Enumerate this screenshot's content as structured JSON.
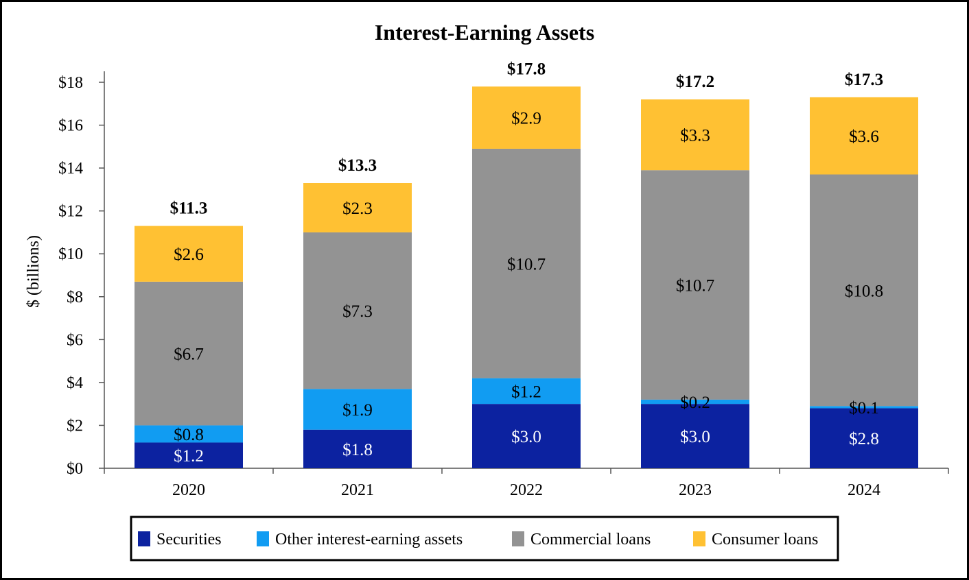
{
  "chart_data": {
    "type": "bar",
    "stacked": true,
    "title": "Interest-Earning Assets",
    "ylabel": "$ (billions)",
    "xlabel": "",
    "ylim": [
      0,
      18
    ],
    "y_ticks": [
      0,
      2,
      4,
      6,
      8,
      10,
      12,
      14,
      16,
      18
    ],
    "y_tick_labels": [
      "$0",
      "$2",
      "$4",
      "$6",
      "$8",
      "$10",
      "$12",
      "$14",
      "$16",
      "$18"
    ],
    "categories": [
      "2020",
      "2021",
      "2022",
      "2023",
      "2024"
    ],
    "series": [
      {
        "name": "Securities",
        "color": "#0c22a0",
        "label_color": "#ffffff",
        "values": [
          1.2,
          1.8,
          3.0,
          3.0,
          2.8
        ],
        "labels": [
          "$1.2",
          "$1.8",
          "$3.0",
          "$3.0",
          "$2.8"
        ]
      },
      {
        "name": "Other interest-earning assets",
        "color": "#119cf2",
        "label_color": "#000000",
        "values": [
          0.8,
          1.9,
          1.2,
          0.2,
          0.1
        ],
        "labels": [
          "$0.8",
          "$1.9",
          "$1.2",
          "$0.2",
          "$0.1"
        ]
      },
      {
        "name": "Commercial loans",
        "color": "#939393",
        "label_color": "#000000",
        "values": [
          6.7,
          7.3,
          10.7,
          10.7,
          10.8
        ],
        "labels": [
          "$6.7",
          "$7.3",
          "$10.7",
          "$10.7",
          "$10.8"
        ]
      },
      {
        "name": "Consumer loans",
        "color": "#ffc133",
        "label_color": "#000000",
        "values": [
          2.6,
          2.3,
          2.9,
          3.3,
          3.6
        ],
        "labels": [
          "$2.6",
          "$2.3",
          "$2.9",
          "$3.3",
          "$3.6"
        ]
      }
    ],
    "totals": [
      11.3,
      13.3,
      17.8,
      17.2,
      17.3
    ],
    "total_labels": [
      "$11.3",
      "$13.3",
      "$17.8",
      "$17.2",
      "$17.3"
    ],
    "grid": false,
    "legend_position": "bottom"
  }
}
